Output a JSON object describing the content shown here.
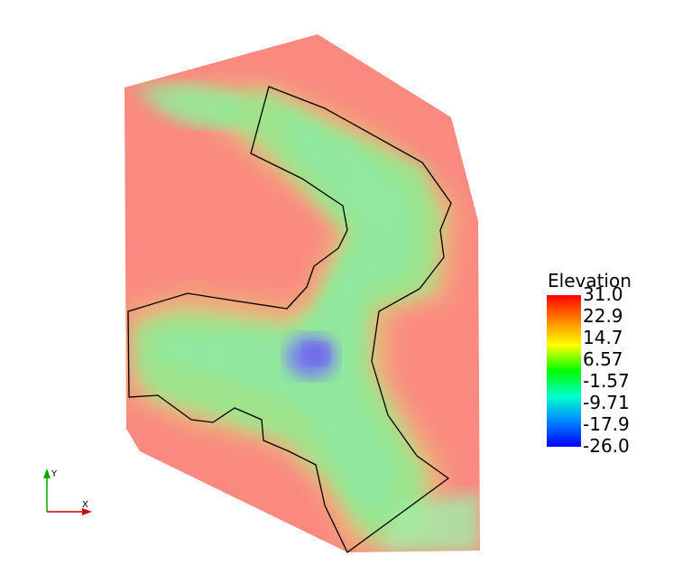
{
  "legend": {
    "title": "Elevation",
    "ticks": [
      "31.0",
      "22.9",
      "14.7",
      "6.57",
      "-1.57",
      "-9.71",
      "-17.9",
      "-26.0"
    ],
    "colormap": [
      "#ff0000",
      "#ff8800",
      "#ffff00",
      "#00ff00",
      "#00ffcc",
      "#0088ff",
      "#0000ff"
    ]
  },
  "axes": {
    "x_label": "X",
    "y_label": "Y",
    "x_color": "#cc0000",
    "y_color": "#00aa00"
  },
  "colors": {
    "background": "#ffffff",
    "terrain_high": "#fa8a80",
    "channel_mid": "#a8e890",
    "channel_deep": "#7f7fee",
    "outline": "#000000"
  }
}
